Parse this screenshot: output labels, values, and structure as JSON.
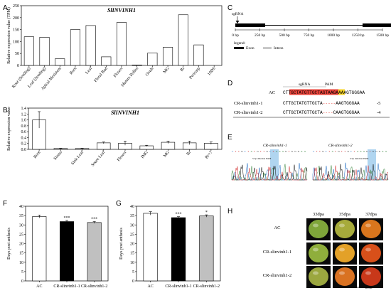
{
  "panel_letters": [
    "A",
    "B",
    "C",
    "D",
    "E",
    "F",
    "G",
    "H"
  ],
  "chart_data": [
    {
      "id": "A",
      "type": "bar",
      "title": "SlINVINH1",
      "ylabel": "Relative expression value (TPM)",
      "ylim": [
        0,
        250
      ],
      "yticks": [
        "0",
        "50",
        "100",
        "150",
        "200",
        "250"
      ],
      "categories": [
        "Root (Seeding)",
        "Leaf (Seeding)",
        "Apical Meristem",
        "Root",
        "Leaf",
        "Floral Bud",
        "Flower",
        "Mature Pollen",
        "Ovule",
        "MG",
        "Br",
        "Pericarp",
        "10DS"
      ],
      "values": [
        120,
        118,
        28,
        150,
        167,
        36,
        180,
        2,
        52,
        76,
        212,
        86,
        0
      ],
      "fill": "#ffffff",
      "stroke": "#000000"
    },
    {
      "id": "B",
      "type": "bar",
      "title": "SlINVINH1",
      "ylabel": "Relative expression value",
      "ylim": [
        0,
        1.4
      ],
      "yticks": [
        "0.0",
        "0.2",
        "0.4",
        "0.6",
        "0.8",
        "1.0",
        "1.2",
        "1.4"
      ],
      "categories": [
        "Root",
        "Stems",
        "Sink Leaf",
        "Soure Leaf",
        "Flower",
        "IMG",
        "MG",
        "Br",
        "Br+7"
      ],
      "values": [
        1.0,
        0.03,
        0.03,
        0.22,
        0.21,
        0.12,
        0.24,
        0.22,
        0.21
      ],
      "errors": [
        0.28,
        0.01,
        0.01,
        0.03,
        0.07,
        0.02,
        0.04,
        0.06,
        0.04
      ],
      "fill": "#ffffff",
      "stroke": "#000000"
    },
    {
      "id": "F",
      "type": "bar",
      "ylabel": "Days post anthesis",
      "ylim": [
        0,
        40
      ],
      "yticks": [
        "0",
        "5",
        "10",
        "15",
        "20",
        "25",
        "30",
        "35",
        "40"
      ],
      "categories": [
        "AC",
        "CR-slinvinh1-1",
        "CR-slinvinh1-2"
      ],
      "values": [
        34.5,
        31.8,
        31.3
      ],
      "errors": [
        0.8,
        0.6,
        0.5
      ],
      "significance": [
        "",
        "***",
        "***"
      ],
      "colors": [
        "#ffffff",
        "#000000",
        "#c0c0c0"
      ]
    },
    {
      "id": "G",
      "type": "bar",
      "ylabel": "Days post anthesis",
      "ylim": [
        0,
        40
      ],
      "yticks": [
        "0",
        "5",
        "10",
        "15",
        "20",
        "25",
        "30",
        "35",
        "40"
      ],
      "categories": [
        "AC",
        "CR-slinvinh1-1",
        "CR-slinvinh1-2"
      ],
      "values": [
        36.2,
        33.9,
        34.8
      ],
      "errors": [
        0.9,
        0.5,
        0.6
      ],
      "significance": [
        "",
        "***",
        "*"
      ],
      "colors": [
        "#ffffff",
        "#000000",
        "#c0c0c0"
      ]
    }
  ],
  "gene_structure": {
    "sgrna_label": "sgRNA",
    "scale_ticks": [
      "0 bp",
      "250 bp",
      "500 bp",
      "750 bp",
      "1000 bp",
      "1250 bp",
      "1500 bp"
    ],
    "legend_title": "legend:",
    "legend_exon": "Exon",
    "legend_intron": "Intron"
  },
  "sequences": {
    "sgrna_label": "sgRNA",
    "pam_label": "PAM",
    "rows": [
      {
        "name": "AC",
        "seq_prefix": "CTT",
        "seq_sgrna": "GCTATGTTGCTAGTAAGAAAAG",
        "seq_pam": "TGG",
        "seq_suffix": "GAA",
        "change": ""
      },
      {
        "name": "CR-slinvinh1-1",
        "seq_prefix": "CTTGCTATGTTGCTA",
        "seq_dash": "-----",
        "seq_pam": "",
        "seq_suffix": "AAGTGGGAA",
        "change": "-5"
      },
      {
        "name": "CR-slinvinh1-2",
        "seq_prefix": "CTTGCTATGTTGCTA",
        "seq_dash": "----",
        "seq_pam": "",
        "seq_suffix": "CAAGTGGGAA",
        "change": "-4"
      }
    ]
  },
  "chromatograms": {
    "left_title": "CR-slinvinh1-1",
    "right_title": "CR-slinvinh1-2",
    "left_note": "5 bp deletion PAM",
    "right_note": "4 bp deletion PAM"
  },
  "fruit_panel": {
    "columns": [
      "33dpa",
      "35dpa",
      "37dpa"
    ],
    "rows": [
      "AC",
      "CR-slinvinh1-1",
      "CR-slinvinh1-2"
    ],
    "scale_label": "2cm",
    "fruit_colors": [
      [
        "#7fa63a",
        "#a7ab3b",
        "#d9761d"
      ],
      [
        "#8fae3c",
        "#e3a128",
        "#d8501a"
      ],
      [
        "#9ba73f",
        "#d97222",
        "#c8381a"
      ]
    ]
  },
  "colors": {
    "sgrna_highlight": "#e8433a",
    "pam_highlight": "#f5d327",
    "chrom_highlight": "#8fc3ea"
  }
}
